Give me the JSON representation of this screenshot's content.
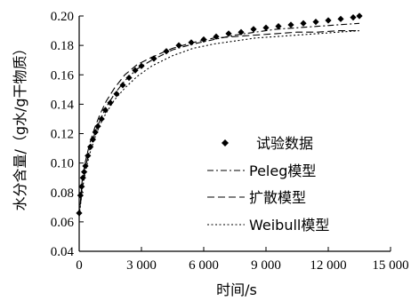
{
  "chart_data": {
    "type": "line",
    "xlabel": "时间/s",
    "ylabel": "水分含量/（g水/g干物质）",
    "xlim": [
      0,
      15000
    ],
    "ylim": [
      0.04,
      0.2
    ],
    "x_ticks": [
      0,
      3000,
      6000,
      9000,
      12000,
      15000
    ],
    "x_tick_labels": [
      "0",
      "3 000",
      "6 000",
      "9 000",
      "12 000",
      "15 000"
    ],
    "y_ticks": [
      0.04,
      0.06,
      0.08,
      0.1,
      0.12,
      0.14,
      0.16,
      0.18,
      0.2
    ],
    "y_tick_labels": [
      "0.04",
      "0.06",
      "0.08",
      "0.10",
      "0.12",
      "0.14",
      "0.16",
      "0.18",
      "0.20"
    ],
    "grid": false,
    "legend_position": "right",
    "series": [
      {
        "name": "试验数据",
        "style": "diamond-markers",
        "x": [
          0,
          60,
          120,
          180,
          240,
          300,
          420,
          540,
          660,
          780,
          900,
          1080,
          1260,
          1500,
          1800,
          2100,
          2400,
          2700,
          3000,
          3600,
          4200,
          4800,
          5400,
          6000,
          6600,
          7200,
          7800,
          8400,
          9000,
          9600,
          10200,
          10800,
          11400,
          12000,
          12600,
          13200,
          13500
        ],
        "y": [
          0.066,
          0.078,
          0.084,
          0.09,
          0.094,
          0.098,
          0.105,
          0.111,
          0.116,
          0.121,
          0.125,
          0.13,
          0.136,
          0.141,
          0.147,
          0.153,
          0.158,
          0.163,
          0.166,
          0.171,
          0.176,
          0.18,
          0.182,
          0.184,
          0.186,
          0.188,
          0.189,
          0.191,
          0.192,
          0.193,
          0.194,
          0.195,
          0.196,
          0.197,
          0.198,
          0.199,
          0.2
        ]
      },
      {
        "name": "Peleg模型",
        "style": "dash-dot",
        "x": [
          0,
          150,
          300,
          500,
          750,
          1000,
          1300,
          1700,
          2200,
          2800,
          3500,
          4500,
          5500,
          6500,
          7500,
          8500,
          9500,
          10500,
          11500,
          12500,
          13500
        ],
        "y": [
          0.064,
          0.083,
          0.097,
          0.109,
          0.12,
          0.129,
          0.138,
          0.147,
          0.156,
          0.164,
          0.17,
          0.177,
          0.181,
          0.184,
          0.187,
          0.189,
          0.191,
          0.192,
          0.193,
          0.194,
          0.195
        ]
      },
      {
        "name": "扩散模型",
        "style": "dashed",
        "x": [
          0,
          150,
          300,
          500,
          750,
          1000,
          1300,
          1700,
          2200,
          2800,
          3500,
          4500,
          5500,
          6500,
          7500,
          8500,
          9500,
          10500,
          11500,
          12500,
          13500
        ],
        "y": [
          0.064,
          0.089,
          0.101,
          0.113,
          0.124,
          0.133,
          0.142,
          0.151,
          0.16,
          0.167,
          0.172,
          0.178,
          0.182,
          0.185,
          0.186,
          0.187,
          0.188,
          0.189,
          0.189,
          0.19,
          0.19
        ]
      },
      {
        "name": "Weibull模型",
        "style": "dotted",
        "x": [
          0,
          150,
          300,
          500,
          750,
          1000,
          1300,
          1700,
          2200,
          2800,
          3500,
          4500,
          5500,
          6500,
          7500,
          8500,
          9500,
          10500,
          11500,
          12500,
          13500
        ],
        "y": [
          0.064,
          0.082,
          0.094,
          0.106,
          0.117,
          0.126,
          0.134,
          0.143,
          0.151,
          0.159,
          0.166,
          0.173,
          0.178,
          0.181,
          0.183,
          0.185,
          0.186,
          0.187,
          0.188,
          0.189,
          0.19
        ]
      }
    ]
  }
}
